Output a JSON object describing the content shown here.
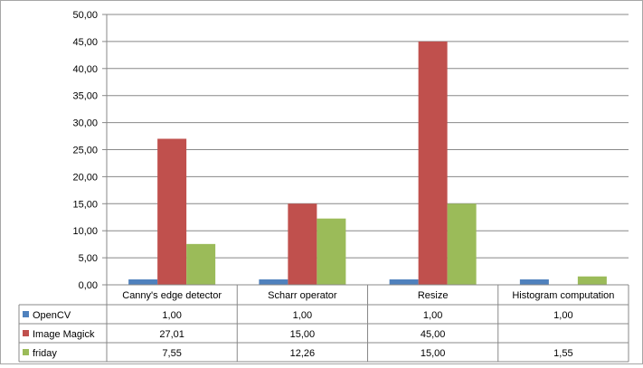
{
  "chart_data": {
    "type": "bar",
    "categories": [
      "Canny's edge detector",
      "Scharr operator",
      "Resize",
      "Histogram computation"
    ],
    "series": [
      {
        "name": "OpenCV",
        "color": "#4f81bd",
        "values": [
          1.0,
          1.0,
          1.0,
          1.0
        ]
      },
      {
        "name": "Image Magick",
        "color": "#c0504d",
        "values": [
          27.01,
          15.0,
          45.0,
          null
        ]
      },
      {
        "name": "friday",
        "color": "#9bbb59",
        "values": [
          7.55,
          12.26,
          15.0,
          1.55
        ]
      }
    ],
    "ylim": [
      0,
      50
    ],
    "yticks": [
      "0,00",
      "5,00",
      "10,00",
      "15,00",
      "20,00",
      "25,00",
      "30,00",
      "35,00",
      "40,00",
      "45,00",
      "50,00"
    ],
    "grid": true,
    "legend": "data-table",
    "table": {
      "rows": [
        [
          "1,00",
          "1,00",
          "1,00",
          "1,00"
        ],
        [
          "27,01",
          "15,00",
          "45,00",
          ""
        ],
        [
          "7,55",
          "12,26",
          "15,00",
          "1,55"
        ]
      ]
    }
  }
}
